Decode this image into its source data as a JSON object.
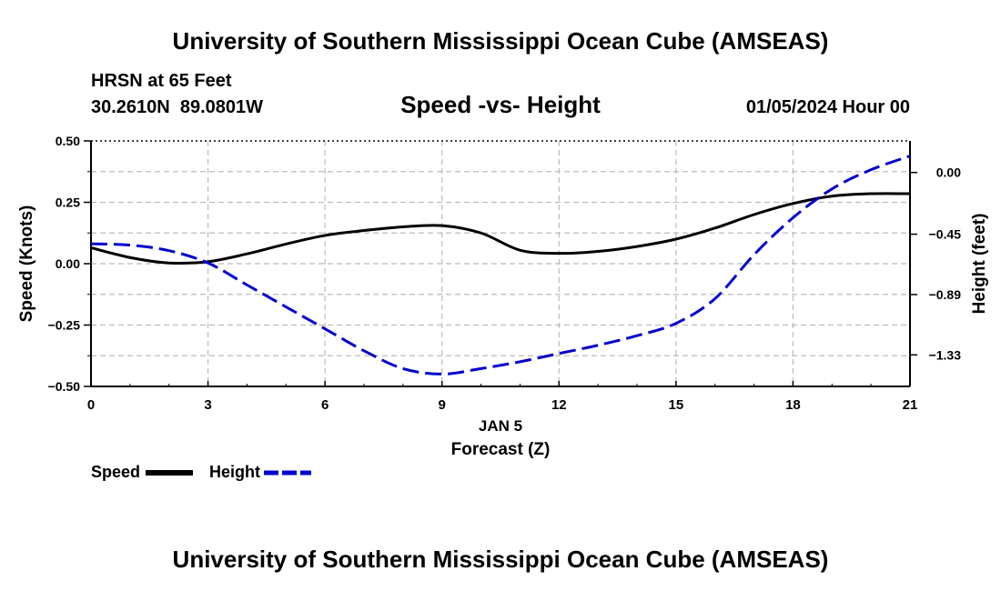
{
  "header": {
    "title": "University of Southern Mississippi Ocean Cube (AMSEAS)",
    "station": "HRSN at 65 Feet",
    "coords": "30.2610N  89.0801W",
    "subtitle": "Speed -vs- Height",
    "datetime": "01/05/2024 Hour 00"
  },
  "footer": {
    "title": "University of Southern Mississippi Ocean Cube (AMSEAS)"
  },
  "colors": {
    "speed": "#000000",
    "height": "#0000cc",
    "grid": "#bbbbbb"
  },
  "chart_data": {
    "type": "line",
    "title": "Speed -vs- Height",
    "xlabel": "Forecast (Z)",
    "xlabel_date": "JAN 5",
    "ylabel": "Speed (Knots)",
    "ylabel_right": "Height (feet)",
    "xlim": [
      0,
      21
    ],
    "ylim": [
      -0.5,
      0.5
    ],
    "ylim_right": [
      -1.56,
      0.23
    ],
    "x_ticks": [
      0,
      3,
      6,
      9,
      12,
      15,
      18,
      21
    ],
    "x_tick_labels": [
      "0",
      "3",
      "6",
      "9",
      "12",
      "15",
      "18",
      "21"
    ],
    "y_ticks": [
      0.5,
      0.25,
      0.0,
      -0.25,
      -0.5
    ],
    "y_tick_labels": [
      "0.50",
      "0.25",
      "0.00",
      "−0.25",
      "−0.50"
    ],
    "y_right_ticks": [
      0.0,
      -0.45,
      -0.89,
      -1.33
    ],
    "y_right_tick_labels": [
      "0.00",
      "−0.45",
      "−0.89",
      "−1.33"
    ],
    "grid": true,
    "series": [
      {
        "name": "Speed",
        "axis": "left",
        "style": "solid",
        "x": [
          0,
          1,
          2,
          3,
          4,
          5,
          6,
          7,
          8,
          9,
          10,
          11,
          12,
          13,
          14,
          15,
          16,
          17,
          18,
          19,
          20,
          21
        ],
        "values": [
          0.065,
          0.025,
          0.003,
          0.008,
          0.04,
          0.08,
          0.115,
          0.135,
          0.15,
          0.155,
          0.125,
          0.055,
          0.042,
          0.05,
          0.07,
          0.1,
          0.145,
          0.2,
          0.245,
          0.275,
          0.285,
          0.285
        ]
      },
      {
        "name": "Height",
        "axis": "right",
        "style": "dashed",
        "x": [
          0,
          1,
          2,
          3,
          4,
          5,
          6,
          7,
          8,
          9,
          10,
          11,
          12,
          13,
          14,
          15,
          16,
          17,
          18,
          19,
          20,
          21
        ],
        "values": [
          -0.52,
          -0.53,
          -0.57,
          -0.66,
          -0.82,
          -0.98,
          -1.14,
          -1.3,
          -1.43,
          -1.47,
          -1.43,
          -1.38,
          -1.32,
          -1.26,
          -1.19,
          -1.1,
          -0.92,
          -0.6,
          -0.33,
          -0.12,
          0.02,
          0.12
        ]
      }
    ]
  }
}
